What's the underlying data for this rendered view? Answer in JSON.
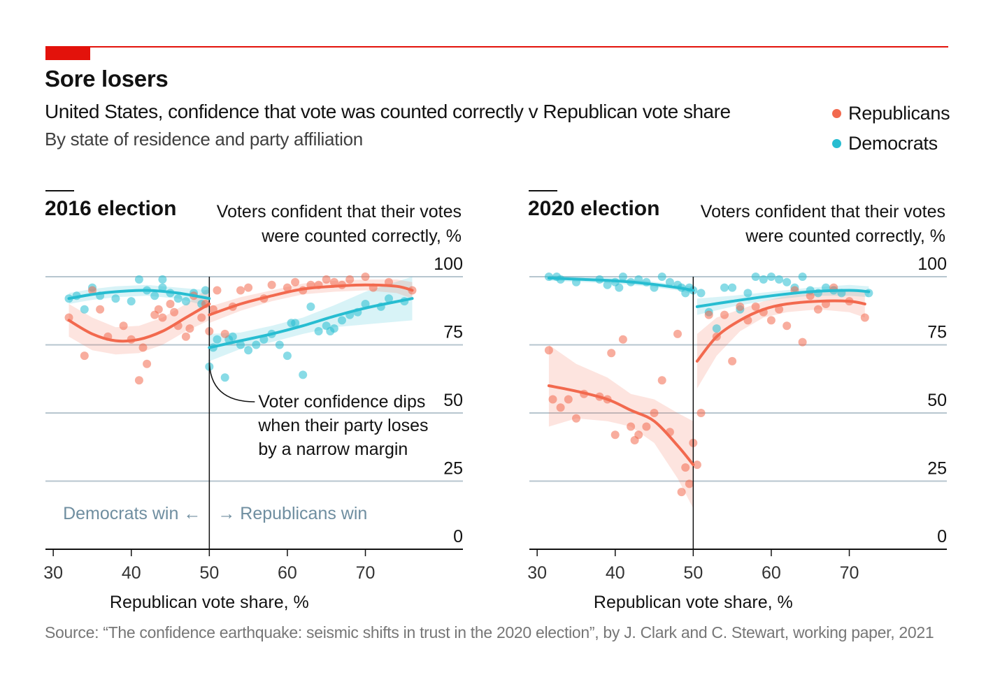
{
  "header": {
    "title": "Sore losers",
    "subtitle": "United States, confidence that vote was counted correctly v Republican vote share",
    "subsubtitle": "By state of residence and party affiliation"
  },
  "legend": [
    {
      "label": "Republicans",
      "color": "#f2694e"
    },
    {
      "label": "Democrats",
      "color": "#27bdd1"
    }
  ],
  "source": "Source: “The confidence earthquake: seismic shifts in trust in the 2020 election”, by J. Clark and C. Stewart, working paper, 2021",
  "colors": {
    "accent": "#e3120b",
    "rep": "#f2694e",
    "dem": "#27bdd1",
    "win_label": "#6f8ea0"
  },
  "chart_data": [
    {
      "type": "scatter",
      "title": "2016 election",
      "ylabel_lines": [
        "Voters confident that their votes",
        "were counted correctly, %"
      ],
      "xlabel": "Republican vote share, %",
      "xlim": [
        29,
        82.5
      ],
      "ylim": [
        0,
        100
      ],
      "xticks": [
        30,
        40,
        50,
        60,
        70
      ],
      "yticks": [
        25,
        50,
        75,
        100
      ],
      "ytick_labels": [
        "0",
        "25",
        "50",
        "75",
        "100"
      ],
      "divider_x": 50,
      "annotation": {
        "lines": [
          "Voter confidence dips",
          "when their party loses",
          "by a narrow margin"
        ],
        "x": 50,
        "y": 70
      },
      "win_labels": {
        "left": "Democrats win ←",
        "right": "→ Republicans win"
      },
      "series": [
        {
          "name": "Democrats",
          "color": "#27bdd1",
          "points": [
            [
              32,
              92
            ],
            [
              33,
              93
            ],
            [
              34,
              88
            ],
            [
              35,
              96
            ],
            [
              36,
              93
            ],
            [
              38,
              92
            ],
            [
              40,
              91
            ],
            [
              41,
              99
            ],
            [
              42,
              95
            ],
            [
              43,
              93
            ],
            [
              44,
              99
            ],
            [
              44,
              96
            ],
            [
              45,
              94
            ],
            [
              46,
              92
            ],
            [
              47,
              91
            ],
            [
              48,
              94
            ],
            [
              49,
              90
            ],
            [
              49.5,
              95
            ],
            [
              50,
              67
            ],
            [
              50.5,
              74
            ],
            [
              51,
              77
            ],
            [
              52,
              63
            ],
            [
              52.5,
              77
            ],
            [
              53,
              78
            ],
            [
              54,
              75
            ],
            [
              55,
              73
            ],
            [
              56,
              75
            ],
            [
              57,
              77
            ],
            [
              58,
              79
            ],
            [
              59,
              75
            ],
            [
              60,
              71
            ],
            [
              60.5,
              83
            ],
            [
              61,
              83
            ],
            [
              62,
              64
            ],
            [
              63,
              89
            ],
            [
              64,
              80
            ],
            [
              65,
              82
            ],
            [
              65.5,
              80
            ],
            [
              66,
              81
            ],
            [
              67,
              84
            ],
            [
              68,
              86
            ],
            [
              69,
              87
            ],
            [
              70,
              90
            ],
            [
              72,
              89
            ],
            [
              73,
              92
            ],
            [
              75,
              91
            ]
          ],
          "trend": [
            [
              32,
              92
            ],
            [
              35,
              93.5
            ],
            [
              38,
              94.5
            ],
            [
              42,
              95
            ],
            [
              46,
              94
            ],
            [
              50,
              92
            ]
          ],
          "trend2": [
            [
              50,
              74
            ],
            [
              54,
              76.5
            ],
            [
              58,
              79
            ],
            [
              62,
              82
            ],
            [
              66,
              85.5
            ],
            [
              70,
              88.5
            ],
            [
              76,
              92
            ]
          ],
          "band_half_width": [
            2,
            2,
            2,
            2,
            2,
            3
          ],
          "band2_half_width": [
            5,
            3,
            3,
            3,
            4,
            6,
            8
          ]
        },
        {
          "name": "Republicans",
          "color": "#f2694e",
          "points": [
            [
              32,
              85
            ],
            [
              34,
              71
            ],
            [
              35,
              95
            ],
            [
              36,
              88
            ],
            [
              37,
              78
            ],
            [
              39,
              82
            ],
            [
              40,
              77
            ],
            [
              41,
              62
            ],
            [
              41.5,
              74
            ],
            [
              42,
              68
            ],
            [
              43,
              86
            ],
            [
              43.5,
              88
            ],
            [
              44,
              85
            ],
            [
              45,
              90
            ],
            [
              45.5,
              87
            ],
            [
              46,
              82
            ],
            [
              47,
              78
            ],
            [
              47.5,
              81
            ],
            [
              48,
              93
            ],
            [
              49,
              85
            ],
            [
              49.5,
              90
            ],
            [
              50,
              80
            ],
            [
              50.5,
              88
            ],
            [
              51,
              95
            ],
            [
              52,
              79
            ],
            [
              53,
              89
            ],
            [
              54,
              95
            ],
            [
              55,
              96
            ],
            [
              57,
              92
            ],
            [
              58,
              97
            ],
            [
              60,
              96
            ],
            [
              61,
              98
            ],
            [
              62,
              95
            ],
            [
              63,
              97
            ],
            [
              64,
              97
            ],
            [
              65,
              99
            ],
            [
              66,
              98
            ],
            [
              67,
              97
            ],
            [
              68,
              99
            ],
            [
              70,
              100
            ],
            [
              71,
              96
            ],
            [
              73,
              98
            ],
            [
              76,
              95
            ]
          ],
          "trend": [
            [
              32,
              84
            ],
            [
              35,
              79
            ],
            [
              38,
              76.5
            ],
            [
              41,
              77
            ],
            [
              44,
              80
            ],
            [
              47,
              85
            ],
            [
              50,
              90
            ]
          ],
          "trend2": [
            [
              50,
              86
            ],
            [
              54,
              90
            ],
            [
              58,
              93
            ],
            [
              62,
              95.5
            ],
            [
              66,
              96.5
            ],
            [
              70,
              97
            ],
            [
              74,
              96.5
            ],
            [
              76,
              95
            ]
          ],
          "band_half_width": [
            6,
            6,
            5,
            5,
            5,
            5,
            6
          ],
          "band2_half_width": [
            3,
            2.5,
            2,
            2,
            2,
            2,
            2.5,
            3
          ]
        }
      ]
    },
    {
      "type": "scatter",
      "title": "2020 election",
      "ylabel_lines": [
        "Voters confident that their votes",
        "were counted correctly, %"
      ],
      "xlabel": "Republican vote share, %",
      "xlim": [
        29,
        82.5
      ],
      "ylim": [
        0,
        100
      ],
      "xticks": [
        30,
        40,
        50,
        60,
        70
      ],
      "yticks": [
        25,
        50,
        75,
        100
      ],
      "ytick_labels": [
        "0",
        "25",
        "50",
        "75",
        "100"
      ],
      "divider_x": 50,
      "series": [
        {
          "name": "Democrats",
          "color": "#27bdd1",
          "points": [
            [
              31.5,
              100
            ],
            [
              32.5,
              100
            ],
            [
              33,
              99
            ],
            [
              35,
              98
            ],
            [
              38,
              99
            ],
            [
              39,
              97
            ],
            [
              40,
              98
            ],
            [
              40.5,
              96
            ],
            [
              41,
              100
            ],
            [
              42,
              98
            ],
            [
              43,
              99
            ],
            [
              44,
              98
            ],
            [
              45,
              96
            ],
            [
              46,
              100
            ],
            [
              47,
              98
            ],
            [
              48,
              97
            ],
            [
              48.5,
              96
            ],
            [
              49,
              94
            ],
            [
              49.5,
              96
            ],
            [
              50,
              95
            ],
            [
              51,
              94
            ],
            [
              52,
              87
            ],
            [
              53,
              81
            ],
            [
              54,
              96
            ],
            [
              55,
              96
            ],
            [
              56,
              88
            ],
            [
              57,
              94
            ],
            [
              58,
              100
            ],
            [
              59,
              99
            ],
            [
              60,
              100
            ],
            [
              61,
              99
            ],
            [
              62,
              98
            ],
            [
              63,
              96
            ],
            [
              64,
              100
            ],
            [
              65,
              95
            ],
            [
              66,
              94
            ],
            [
              67,
              96
            ],
            [
              68,
              95
            ],
            [
              69,
              94
            ],
            [
              72.5,
              94
            ]
          ],
          "trend": [
            [
              31.5,
              99.5
            ],
            [
              36,
              99
            ],
            [
              40,
              98.5
            ],
            [
              44,
              97.5
            ],
            [
              48,
              96
            ],
            [
              50,
              95
            ]
          ],
          "trend2": [
            [
              50.5,
              89
            ],
            [
              55,
              91
            ],
            [
              60,
              93
            ],
            [
              65,
              94.5
            ],
            [
              70,
              95
            ],
            [
              72.5,
              94.5
            ]
          ],
          "band_half_width": [
            1,
            1,
            1,
            1,
            1,
            1.5
          ],
          "band2_half_width": [
            3,
            2,
            1.5,
            1.5,
            2,
            2
          ]
        },
        {
          "name": "Republicans",
          "color": "#f2694e",
          "points": [
            [
              31.5,
              73
            ],
            [
              32,
              55
            ],
            [
              33,
              52
            ],
            [
              34,
              55
            ],
            [
              35,
              48
            ],
            [
              36,
              57
            ],
            [
              38,
              56
            ],
            [
              39,
              55
            ],
            [
              39.5,
              72
            ],
            [
              40,
              42
            ],
            [
              41,
              77
            ],
            [
              42,
              45
            ],
            [
              42.5,
              40
            ],
            [
              43,
              42
            ],
            [
              44,
              45
            ],
            [
              45,
              50
            ],
            [
              46,
              62
            ],
            [
              47,
              43
            ],
            [
              48,
              79
            ],
            [
              48.5,
              21
            ],
            [
              49,
              30
            ],
            [
              49.5,
              24
            ],
            [
              50,
              39
            ],
            [
              50.5,
              31
            ],
            [
              51,
              50
            ],
            [
              52,
              86
            ],
            [
              53,
              78
            ],
            [
              54,
              86
            ],
            [
              55,
              69
            ],
            [
              56,
              89
            ],
            [
              57,
              84
            ],
            [
              58,
              89
            ],
            [
              59,
              87
            ],
            [
              60,
              84
            ],
            [
              61,
              88
            ],
            [
              62,
              82
            ],
            [
              63,
              95
            ],
            [
              64,
              76
            ],
            [
              65,
              93
            ],
            [
              66,
              88
            ],
            [
              67,
              90
            ],
            [
              68,
              96
            ],
            [
              70,
              91
            ],
            [
              72,
              85
            ]
          ],
          "trend": [
            [
              31.5,
              60
            ],
            [
              35,
              58
            ],
            [
              39,
              55
            ],
            [
              42,
              51
            ],
            [
              45,
              47
            ],
            [
              48,
              38
            ],
            [
              50,
              31
            ]
          ],
          "trend2": [
            [
              50.5,
              69
            ],
            [
              53,
              78
            ],
            [
              56,
              84
            ],
            [
              59,
              88
            ],
            [
              62,
              90
            ],
            [
              66,
              91
            ],
            [
              70,
              91
            ],
            [
              72,
              90
            ]
          ],
          "band_half_width": [
            15,
            10,
            8,
            6,
            8,
            12,
            16
          ],
          "band2_half_width": [
            10,
            7,
            4,
            3,
            3,
            3,
            4,
            5
          ]
        }
      ]
    }
  ]
}
